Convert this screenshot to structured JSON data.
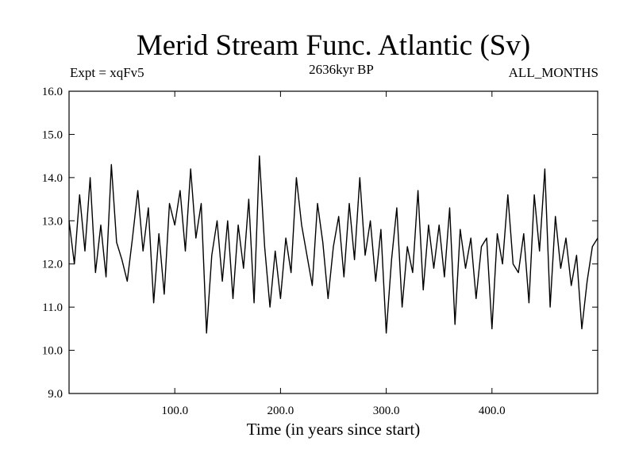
{
  "header": {
    "title": "Merid Stream Func. Atlantic (Sv)",
    "expt_label": "Expt = xqFv5",
    "period_label": "2636kyr BP",
    "months_label": "ALL_MONTHS"
  },
  "chart_data": {
    "type": "line",
    "title": "Merid Stream Func. Atlantic (Sv)",
    "xlabel": "Time (in years since start)",
    "ylabel": "",
    "xlim": [
      0,
      500
    ],
    "ylim": [
      9.0,
      16.0
    ],
    "xticks": [
      100,
      200,
      300,
      400
    ],
    "xtick_labels": [
      "100.0",
      "200.0",
      "300.0",
      "400.0"
    ],
    "yticks": [
      9,
      10,
      11,
      12,
      13,
      14,
      15,
      16
    ],
    "ytick_labels": [
      "9.0",
      "10.0",
      "11.0",
      "12.0",
      "13.0",
      "14.0",
      "15.0",
      "16.0"
    ],
    "grid": false,
    "series": [
      {
        "name": "xqFv5",
        "x": [
          0,
          5,
          10,
          15,
          20,
          25,
          30,
          35,
          40,
          45,
          50,
          55,
          60,
          65,
          70,
          75,
          80,
          85,
          90,
          95,
          100,
          105,
          110,
          115,
          120,
          125,
          130,
          135,
          140,
          145,
          150,
          155,
          160,
          165,
          170,
          175,
          180,
          185,
          190,
          195,
          200,
          205,
          210,
          215,
          220,
          225,
          230,
          235,
          240,
          245,
          250,
          255,
          260,
          265,
          270,
          275,
          280,
          285,
          290,
          295,
          300,
          305,
          310,
          315,
          320,
          325,
          330,
          335,
          340,
          345,
          350,
          355,
          360,
          365,
          370,
          375,
          380,
          385,
          390,
          395,
          400,
          405,
          410,
          415,
          420,
          425,
          430,
          435,
          440,
          445,
          450,
          455,
          460,
          465,
          470,
          475,
          480,
          485,
          490,
          495,
          500
        ],
        "values": [
          13.0,
          12.0,
          13.6,
          12.3,
          14.0,
          11.8,
          12.9,
          11.7,
          14.3,
          12.5,
          12.1,
          11.6,
          12.6,
          13.7,
          12.3,
          13.3,
          11.1,
          12.7,
          11.3,
          13.4,
          12.9,
          13.7,
          12.3,
          14.2,
          12.6,
          13.4,
          10.4,
          12.2,
          13.0,
          11.6,
          13.0,
          11.2,
          12.9,
          11.9,
          13.5,
          11.1,
          14.5,
          12.4,
          11.0,
          12.3,
          11.2,
          12.6,
          11.8,
          14.0,
          12.9,
          12.2,
          11.5,
          13.4,
          12.5,
          11.2,
          12.4,
          13.1,
          11.7,
          13.4,
          12.1,
          14.0,
          12.2,
          13.0,
          11.6,
          12.8,
          10.4,
          12.1,
          13.3,
          11.0,
          12.4,
          11.8,
          13.7,
          11.4,
          12.9,
          11.9,
          12.9,
          11.7,
          13.3,
          10.6,
          12.8,
          11.9,
          12.6,
          11.2,
          12.4,
          12.6,
          10.5,
          12.7,
          12.0,
          13.6,
          12.0,
          11.8,
          12.7,
          11.1,
          13.6,
          12.3,
          14.2,
          11.0,
          13.1,
          11.9,
          12.6,
          11.5,
          12.2,
          10.5,
          11.6,
          12.4,
          12.6
        ]
      }
    ]
  }
}
